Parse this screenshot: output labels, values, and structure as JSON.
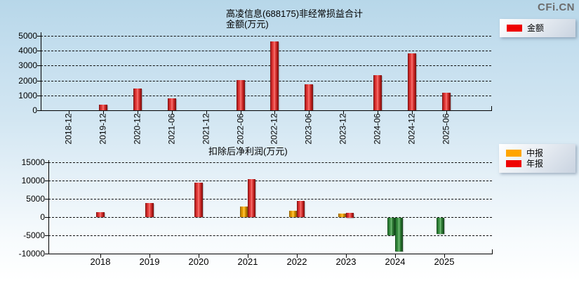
{
  "logo_text": "CFi.CN",
  "colors": {
    "amount_red": "#ee0202",
    "interim_orange": "#ffa500",
    "annual_red": "#ee0202",
    "negative_green": "#2e8b33"
  },
  "chart_data": [
    {
      "type": "bar",
      "title": "高凌信息(688175)非经常损益合计",
      "subtitle": "金额(万元)",
      "legend": [
        {
          "label": "金额",
          "color": "#ee0202"
        }
      ],
      "legend_position": "top-right",
      "grid": true,
      "categories": [
        "2018-12",
        "2019-12",
        "2020-12",
        "2021-06",
        "2021-12",
        "2022-06",
        "2022-12",
        "2023-06",
        "2023-12",
        "2024-06",
        "2024-12",
        "2025-06"
      ],
      "values": [
        null,
        390,
        1480,
        790,
        null,
        2030,
        4630,
        1730,
        null,
        2340,
        3830,
        1170
      ],
      "ylim": [
        0,
        5000
      ],
      "yticks": [
        0,
        1000,
        2000,
        3000,
        4000,
        5000
      ],
      "unit": "万元"
    },
    {
      "type": "bar",
      "title": "扣除后净利润(万元)",
      "legend": [
        {
          "label": "中报",
          "color": "#ffa500"
        },
        {
          "label": "年报",
          "color": "#ee0202"
        }
      ],
      "legend_position": "top-right",
      "grid": true,
      "categories": [
        "2018",
        "2019",
        "2020",
        "2021",
        "2022",
        "2023",
        "2024",
        "2025"
      ],
      "series": [
        {
          "name": "中报",
          "color": "#ffa500",
          "values": [
            null,
            null,
            null,
            2890,
            1790,
            1000,
            -4750,
            -4500
          ]
        },
        {
          "name": "年报",
          "color": "#ee0202",
          "values": [
            1360,
            3880,
            9430,
            10330,
            4340,
            1250,
            -9250,
            null
          ]
        }
      ],
      "negative_color": "#2e8b33",
      "ylim": [
        -10000,
        15000
      ],
      "yticks": [
        -10000,
        -5000,
        0,
        5000,
        10000,
        15000
      ],
      "unit": "万元"
    }
  ]
}
